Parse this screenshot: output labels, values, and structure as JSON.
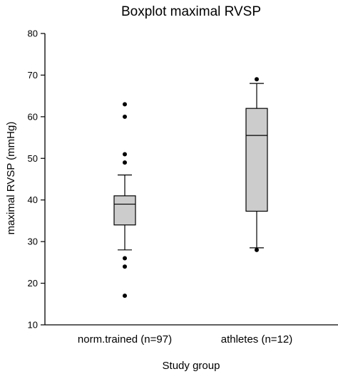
{
  "chart_data": {
    "type": "boxplot",
    "title": "Boxplot maximal RVSP",
    "xlabel": "Study group",
    "ylabel": "maximal RVSP (mmHg)",
    "ylim": [
      10,
      80
    ],
    "yticks": [
      10,
      20,
      30,
      40,
      50,
      60,
      70,
      80
    ],
    "grid": false,
    "groups": [
      {
        "label": "norm.trained (n=97)",
        "whisker_low": 28,
        "q1": 34,
        "median": 39,
        "q3": 41,
        "whisker_high": 46,
        "outliers": [
          17,
          24,
          26,
          49,
          51,
          60,
          63
        ]
      },
      {
        "label": "athletes (n=12)",
        "whisker_low": 28.5,
        "q1": 37.3,
        "median": 55.5,
        "q3": 62,
        "whisker_high": 68,
        "outliers": [
          28,
          69
        ]
      }
    ],
    "colors": {
      "box_fill": "#cccccc",
      "line": "#000000",
      "outlier": "#000000"
    }
  }
}
